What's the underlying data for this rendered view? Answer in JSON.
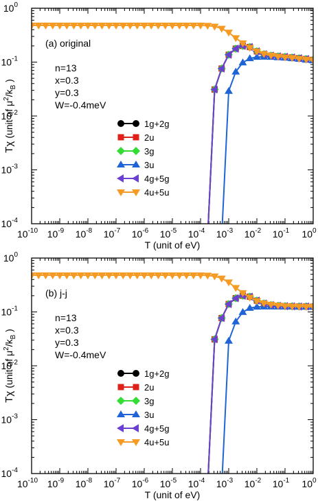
{
  "chart_data": [
    {
      "type": "line",
      "panel_label": "(a)",
      "panel_title": "original",
      "xlabel": "T (unit of eV)",
      "ylabel_prefix": "Tχ",
      "ylabel_unit_pre": "(unit of μ",
      "ylabel_unit_sup": "2",
      "ylabel_unit_mid": "/k",
      "ylabel_unit_sub": "B",
      "ylabel_unit_post": ")",
      "x_scale": "log",
      "y_scale": "log",
      "xlim": [
        1e-10,
        1
      ],
      "ylim": [
        0.0001,
        1
      ],
      "x_ticks": [
        {
          "base": "10",
          "exp": "-10"
        },
        {
          "base": "10",
          "exp": "-9"
        },
        {
          "base": "10",
          "exp": "-8"
        },
        {
          "base": "10",
          "exp": "-7"
        },
        {
          "base": "10",
          "exp": "-6"
        },
        {
          "base": "10",
          "exp": "-5"
        },
        {
          "base": "10",
          "exp": "-4"
        },
        {
          "base": "10",
          "exp": "-3"
        },
        {
          "base": "10",
          "exp": "-2"
        },
        {
          "base": "10",
          "exp": "-1"
        },
        {
          "base": "10",
          "exp": "0"
        }
      ],
      "y_ticks": [
        {
          "base": "10",
          "exp": "-4"
        },
        {
          "base": "10",
          "exp": "-3"
        },
        {
          "base": "10",
          "exp": "-2"
        },
        {
          "base": "10",
          "exp": "-1"
        },
        {
          "base": "10",
          "exp": "0"
        }
      ],
      "params": [
        "n=13",
        "x=0.3",
        "y=0.3",
        "W=-0.4meV"
      ],
      "legend_position": "center",
      "series": [
        {
          "name": "1g+2g",
          "color": "#000000",
          "marker": "circle",
          "x": [
            0.000178,
            0.000316,
            0.000562,
            0.001,
            0.00178,
            0.00316,
            0.00562,
            0.01,
            0.0178,
            0.0316,
            0.0562,
            0.1,
            0.178,
            0.316,
            0.562,
            1.0
          ],
          "y": [
            0.0001,
            0.031,
            0.076,
            0.137,
            0.178,
            0.2,
            0.191,
            0.158,
            0.14,
            0.132,
            0.128,
            0.125,
            0.122,
            0.118,
            0.114,
            0.11
          ]
        },
        {
          "name": "2u",
          "color": "#e0201b",
          "marker": "square",
          "x": [
            0.000178,
            0.000316,
            0.000562,
            0.001,
            0.00178,
            0.00316,
            0.00562,
            0.01,
            0.0178,
            0.0316,
            0.0562,
            0.1,
            0.178,
            0.316,
            0.562,
            1.0
          ],
          "y": [
            0.0001,
            0.031,
            0.076,
            0.137,
            0.178,
            0.2,
            0.191,
            0.158,
            0.14,
            0.132,
            0.128,
            0.125,
            0.122,
            0.118,
            0.114,
            0.11
          ]
        },
        {
          "name": "3g",
          "color": "#33dd33",
          "marker": "diamond",
          "x": [
            0.000178,
            0.000316,
            0.000562,
            0.001,
            0.00178,
            0.00316,
            0.00562,
            0.01,
            0.0178,
            0.0316,
            0.0562,
            0.1,
            0.178,
            0.316,
            0.562,
            1.0
          ],
          "y": [
            0.0001,
            0.031,
            0.076,
            0.137,
            0.178,
            0.2,
            0.191,
            0.158,
            0.14,
            0.132,
            0.128,
            0.125,
            0.122,
            0.118,
            0.114,
            0.11
          ]
        },
        {
          "name": "3u",
          "color": "#1f64d6",
          "marker": "triangle-up",
          "x": [
            0.000562,
            0.001,
            0.00178,
            0.00316,
            0.00562,
            0.01,
            0.0178,
            0.0316,
            0.0562,
            0.1,
            0.178,
            0.316,
            0.562,
            1.0
          ],
          "y": [
            0.0001,
            0.029,
            0.066,
            0.098,
            0.117,
            0.124,
            0.125,
            0.124,
            0.122,
            0.12,
            0.117,
            0.114,
            0.11,
            0.107
          ]
        },
        {
          "name": "4g+5g",
          "color": "#6b3fd1",
          "marker": "triangle-left",
          "x": [
            0.000178,
            0.000316,
            0.000562,
            0.001,
            0.00178,
            0.00316,
            0.00562,
            0.01,
            0.0178,
            0.0316,
            0.0562,
            0.1,
            0.178,
            0.316,
            0.562,
            1.0
          ],
          "y": [
            0.0001,
            0.031,
            0.076,
            0.137,
            0.178,
            0.2,
            0.191,
            0.158,
            0.14,
            0.132,
            0.128,
            0.125,
            0.122,
            0.118,
            0.114,
            0.11
          ]
        },
        {
          "name": "4u+5u",
          "color": "#f59a23",
          "marker": "triangle-down",
          "x": [
            1e-10,
            1.78e-10,
            3.16e-10,
            5.62e-10,
            1e-09,
            1.78e-09,
            3.16e-09,
            5.62e-09,
            1e-08,
            1.78e-08,
            3.16e-08,
            5.62e-08,
            1e-07,
            1.78e-07,
            3.16e-07,
            5.62e-07,
            1e-06,
            1.78e-06,
            3.16e-06,
            5.62e-06,
            1e-05,
            1.78e-05,
            3.16e-05,
            5.62e-05,
            0.0001,
            0.000178,
            0.000316,
            0.000562,
            0.001,
            0.00178,
            0.00316,
            0.00562,
            0.01,
            0.0178,
            0.0316,
            0.0562,
            0.1,
            0.178,
            0.316,
            0.562,
            1.0
          ],
          "y": [
            0.48,
            0.48,
            0.48,
            0.48,
            0.48,
            0.48,
            0.48,
            0.48,
            0.48,
            0.48,
            0.48,
            0.48,
            0.48,
            0.48,
            0.48,
            0.48,
            0.48,
            0.48,
            0.48,
            0.48,
            0.48,
            0.48,
            0.48,
            0.48,
            0.48,
            0.475,
            0.46,
            0.42,
            0.355,
            0.28,
            0.225,
            0.185,
            0.158,
            0.142,
            0.133,
            0.127,
            0.123,
            0.12,
            0.116,
            0.112,
            0.108
          ]
        }
      ]
    },
    {
      "type": "line",
      "panel_label": "(b)",
      "panel_title": "j-j",
      "xlabel": "T (unit of eV)",
      "ylabel_prefix": "Tχ",
      "ylabel_unit_pre": "(unit of μ",
      "ylabel_unit_sup": "2",
      "ylabel_unit_mid": "/k",
      "ylabel_unit_sub": "B",
      "ylabel_unit_post": ")",
      "x_scale": "log",
      "y_scale": "log",
      "xlim": [
        1e-10,
        1
      ],
      "ylim": [
        0.0001,
        1
      ],
      "x_ticks": [
        {
          "base": "10",
          "exp": "-10"
        },
        {
          "base": "10",
          "exp": "-9"
        },
        {
          "base": "10",
          "exp": "-8"
        },
        {
          "base": "10",
          "exp": "-7"
        },
        {
          "base": "10",
          "exp": "-6"
        },
        {
          "base": "10",
          "exp": "-5"
        },
        {
          "base": "10",
          "exp": "-4"
        },
        {
          "base": "10",
          "exp": "-3"
        },
        {
          "base": "10",
          "exp": "-2"
        },
        {
          "base": "10",
          "exp": "-1"
        },
        {
          "base": "10",
          "exp": "0"
        }
      ],
      "y_ticks": [
        {
          "base": "10",
          "exp": "-4"
        },
        {
          "base": "10",
          "exp": "-3"
        },
        {
          "base": "10",
          "exp": "-2"
        },
        {
          "base": "10",
          "exp": "-1"
        },
        {
          "base": "10",
          "exp": "0"
        }
      ],
      "params": [
        "n=13",
        "x=0.3",
        "y=0.3",
        "W=-0.4meV"
      ],
      "legend_position": "center",
      "series": [
        {
          "name": "1g+2g",
          "color": "#000000",
          "marker": "circle",
          "x": [
            0.000178,
            0.000316,
            0.000562,
            0.001,
            0.00178,
            0.00316,
            0.00562,
            0.01,
            0.0178,
            0.0316,
            0.0562,
            0.1,
            0.178,
            0.316,
            0.562,
            1.0
          ],
          "y": [
            0.0001,
            0.031,
            0.077,
            0.14,
            0.18,
            0.2,
            0.192,
            0.162,
            0.143,
            0.134,
            0.13,
            0.128,
            0.127,
            0.126,
            0.126,
            0.125
          ]
        },
        {
          "name": "2u",
          "color": "#e0201b",
          "marker": "square",
          "x": [
            0.000178,
            0.000316,
            0.000562,
            0.001,
            0.00178,
            0.00316,
            0.00562,
            0.01,
            0.0178,
            0.0316,
            0.0562,
            0.1,
            0.178,
            0.316,
            0.562,
            1.0
          ],
          "y": [
            0.0001,
            0.031,
            0.077,
            0.14,
            0.18,
            0.2,
            0.192,
            0.162,
            0.143,
            0.134,
            0.13,
            0.128,
            0.127,
            0.126,
            0.126,
            0.125
          ]
        },
        {
          "name": "3g",
          "color": "#33dd33",
          "marker": "diamond",
          "x": [
            0.000178,
            0.000316,
            0.000562,
            0.001,
            0.00178,
            0.00316,
            0.00562,
            0.01,
            0.0178,
            0.0316,
            0.0562,
            0.1,
            0.178,
            0.316,
            0.562,
            1.0
          ],
          "y": [
            0.0001,
            0.031,
            0.077,
            0.14,
            0.18,
            0.2,
            0.192,
            0.162,
            0.143,
            0.134,
            0.13,
            0.128,
            0.127,
            0.126,
            0.126,
            0.125
          ]
        },
        {
          "name": "3u",
          "color": "#1f64d6",
          "marker": "triangle-up",
          "x": [
            0.000562,
            0.001,
            0.00178,
            0.00316,
            0.00562,
            0.01,
            0.0178,
            0.0316,
            0.0562,
            0.1,
            0.178,
            0.316,
            0.562,
            1.0
          ],
          "y": [
            0.0001,
            0.029,
            0.066,
            0.099,
            0.118,
            0.124,
            0.125,
            0.125,
            0.125,
            0.125,
            0.125,
            0.124,
            0.124,
            0.124
          ]
        },
        {
          "name": "4g+5g",
          "color": "#6b3fd1",
          "marker": "triangle-left",
          "x": [
            0.000178,
            0.000316,
            0.000562,
            0.001,
            0.00178,
            0.00316,
            0.00562,
            0.01,
            0.0178,
            0.0316,
            0.0562,
            0.1,
            0.178,
            0.316,
            0.562,
            1.0
          ],
          "y": [
            0.0001,
            0.031,
            0.077,
            0.14,
            0.18,
            0.2,
            0.192,
            0.162,
            0.143,
            0.134,
            0.13,
            0.128,
            0.127,
            0.126,
            0.126,
            0.125
          ]
        },
        {
          "name": "4u+5u",
          "color": "#f59a23",
          "marker": "triangle-down",
          "x": [
            1e-10,
            1.78e-10,
            3.16e-10,
            5.62e-10,
            1e-09,
            1.78e-09,
            3.16e-09,
            5.62e-09,
            1e-08,
            1.78e-08,
            3.16e-08,
            5.62e-08,
            1e-07,
            1.78e-07,
            3.16e-07,
            5.62e-07,
            1e-06,
            1.78e-06,
            3.16e-06,
            5.62e-06,
            1e-05,
            1.78e-05,
            3.16e-05,
            5.62e-05,
            0.0001,
            0.000178,
            0.000316,
            0.000562,
            0.001,
            0.00178,
            0.00316,
            0.00562,
            0.01,
            0.0178,
            0.0316,
            0.0562,
            0.1,
            0.178,
            0.316,
            0.562,
            1.0
          ],
          "y": [
            0.48,
            0.48,
            0.48,
            0.48,
            0.48,
            0.48,
            0.48,
            0.48,
            0.48,
            0.48,
            0.48,
            0.48,
            0.48,
            0.48,
            0.48,
            0.48,
            0.48,
            0.48,
            0.48,
            0.48,
            0.48,
            0.48,
            0.48,
            0.48,
            0.48,
            0.475,
            0.46,
            0.42,
            0.355,
            0.28,
            0.225,
            0.185,
            0.16,
            0.145,
            0.137,
            0.132,
            0.129,
            0.127,
            0.126,
            0.125,
            0.125
          ]
        }
      ]
    }
  ]
}
